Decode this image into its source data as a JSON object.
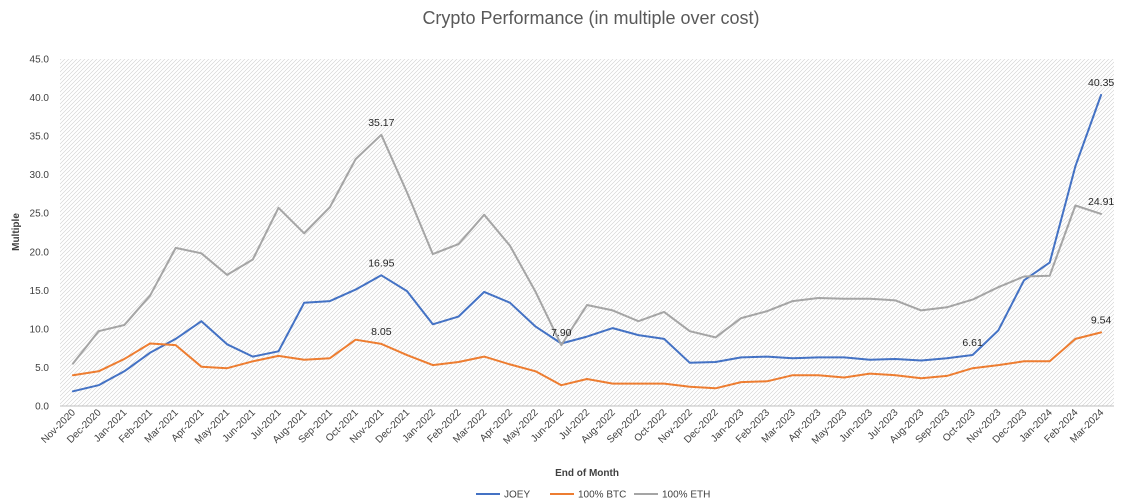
{
  "chart_data": {
    "type": "line",
    "title": "Crypto Performance (in multiple over cost)",
    "xlabel": "End of Month",
    "ylabel": "Multiple",
    "ylim": [
      0,
      45
    ],
    "yticks": [
      "0.0",
      "5.0",
      "10.0",
      "15.0",
      "20.0",
      "25.0",
      "30.0",
      "35.0",
      "40.0",
      "45.0"
    ],
    "legend_position": "bottom",
    "grid": false,
    "categories": [
      "Nov-2020",
      "Dec-2020",
      "Jan-2021",
      "Feb-2021",
      "Mar-2021",
      "Apr-2021",
      "May-2021",
      "Jun-2021",
      "Jul-2021",
      "Aug-2021",
      "Sep-2021",
      "Oct-2021",
      "Nov-2021",
      "Dec-2021",
      "Jan-2022",
      "Feb-2022",
      "Mar-2022",
      "Apr-2022",
      "May-2022",
      "Jun-2022",
      "Jul-2022",
      "Aug-2022",
      "Sep-2022",
      "Oct-2022",
      "Nov-2022",
      "Dec-2022",
      "Jan-2023",
      "Feb-2023",
      "Mar-2023",
      "Apr-2023",
      "May-2023",
      "Jun-2023",
      "Jul-2023",
      "Aug-2023",
      "Sep-2023",
      "Oct-2023",
      "Nov-2023",
      "Dec-2023",
      "Jan-2024",
      "Feb-2024",
      "Mar-2024"
    ],
    "series": [
      {
        "name": "JOEY",
        "color": "#4472C4",
        "values": [
          1.9,
          2.7,
          4.5,
          6.9,
          8.7,
          11.0,
          8.0,
          6.4,
          7.1,
          13.4,
          13.6,
          15.1,
          16.95,
          14.9,
          10.6,
          11.6,
          14.8,
          13.4,
          10.3,
          8.1,
          9.0,
          10.1,
          9.2,
          8.7,
          5.6,
          5.7,
          6.3,
          6.4,
          6.2,
          6.3,
          6.3,
          6.0,
          6.1,
          5.9,
          6.2,
          6.61,
          9.8,
          16.3,
          18.6,
          31.1,
          40.35
        ]
      },
      {
        "name": "100% BTC",
        "color": "#ED7D31",
        "values": [
          4.0,
          4.5,
          6.1,
          8.1,
          7.9,
          5.1,
          4.9,
          5.8,
          6.5,
          6.0,
          6.2,
          8.6,
          8.05,
          6.6,
          5.3,
          5.7,
          6.4,
          5.4,
          4.5,
          2.7,
          3.5,
          2.9,
          2.9,
          2.9,
          2.5,
          2.3,
          3.1,
          3.2,
          4.0,
          4.0,
          3.7,
          4.2,
          4.0,
          3.6,
          3.9,
          4.9,
          5.3,
          5.8,
          5.8,
          8.7,
          9.54
        ]
      },
      {
        "name": "100% ETH",
        "color": "#A5A5A5",
        "values": [
          5.5,
          9.7,
          10.5,
          14.3,
          20.5,
          19.8,
          17.0,
          19.0,
          25.7,
          22.4,
          25.8,
          32.0,
          35.17,
          27.7,
          19.7,
          21.0,
          24.8,
          20.8,
          14.8,
          7.9,
          13.1,
          12.4,
          11.0,
          12.2,
          9.7,
          8.9,
          11.4,
          12.3,
          13.6,
          14.0,
          13.9,
          13.9,
          13.7,
          12.4,
          12.8,
          13.8,
          15.4,
          16.8,
          16.9,
          26.0,
          24.91
        ]
      }
    ],
    "data_labels": [
      {
        "series": 0,
        "index": 12,
        "text": "16.95"
      },
      {
        "series": 0,
        "index": 35,
        "text": "6.61"
      },
      {
        "series": 0,
        "index": 40,
        "text": "40.35"
      },
      {
        "series": 1,
        "index": 12,
        "text": "8.05"
      },
      {
        "series": 1,
        "index": 40,
        "text": "9.54"
      },
      {
        "series": 2,
        "index": 12,
        "text": "35.17"
      },
      {
        "series": 2,
        "index": 19,
        "text": "7.90"
      },
      {
        "series": 2,
        "index": 40,
        "text": "24.91"
      }
    ]
  }
}
